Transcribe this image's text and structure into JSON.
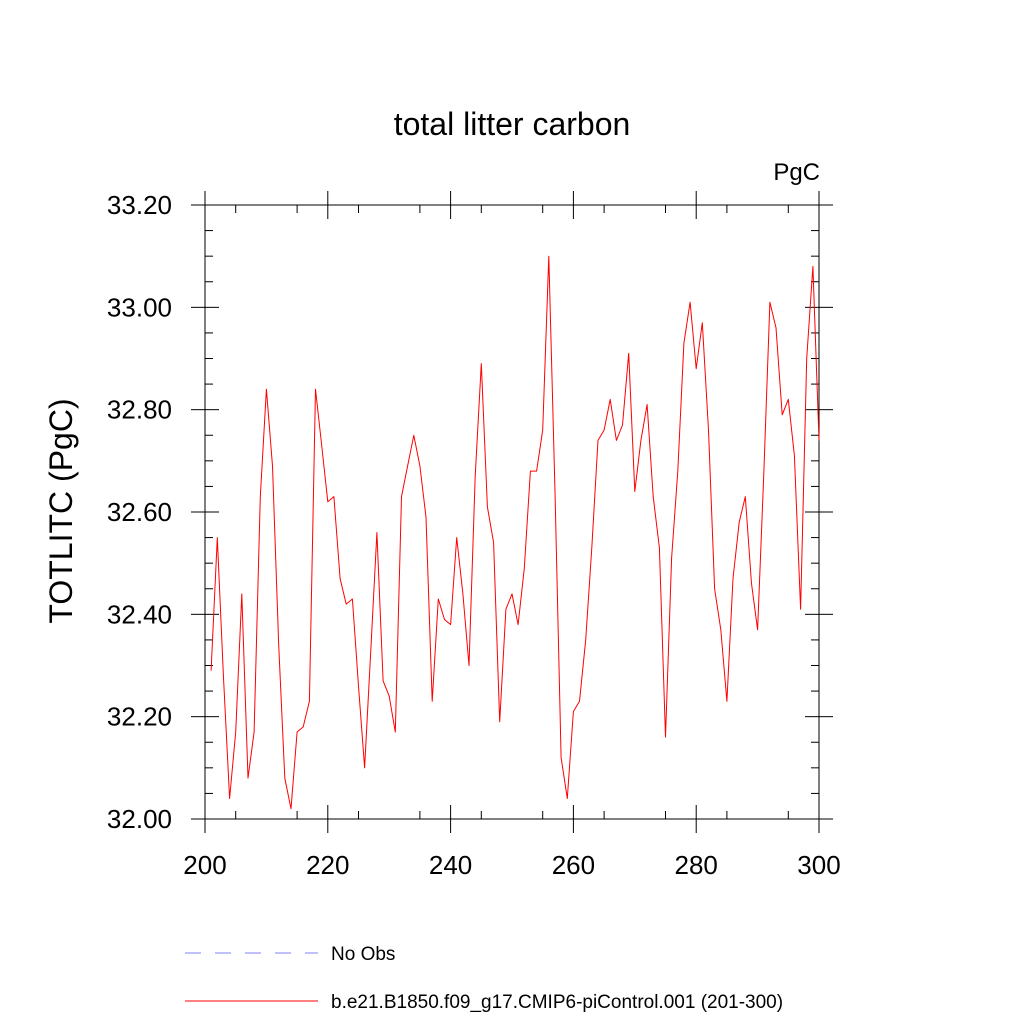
{
  "chart_data": {
    "type": "line",
    "title": "total litter carbon",
    "units": "PgC",
    "xlabel": "",
    "ylabel": "TOTLITC  (PgC)",
    "xlim": [
      200,
      300
    ],
    "ylim": [
      32.0,
      33.2
    ],
    "x_ticks": [
      "200",
      "220",
      "240",
      "260",
      "280",
      "300"
    ],
    "y_ticks": [
      "32.00",
      "32.20",
      "32.40",
      "32.60",
      "32.80",
      "33.00",
      "33.20"
    ],
    "grid": false,
    "legend_position": "bottom",
    "legend": [
      {
        "label": "No Obs",
        "color": "#8080ff",
        "style": "dashed"
      },
      {
        "label": "b.e21.B1850.f09_g17.CMIP6-piControl.001 (201-300)",
        "color": "#ff0000",
        "style": "solid"
      }
    ],
    "series": [
      {
        "name": "b.e21.B1850.f09_g17.CMIP6-piControl.001 (201-300)",
        "color": "#ff0000",
        "x": [
          201,
          202,
          203,
          204,
          205,
          206,
          207,
          208,
          209,
          210,
          211,
          212,
          213,
          214,
          215,
          216,
          217,
          218,
          219,
          220,
          221,
          222,
          223,
          224,
          225,
          226,
          227,
          228,
          229,
          230,
          231,
          232,
          233,
          234,
          235,
          236,
          237,
          238,
          239,
          240,
          241,
          242,
          243,
          244,
          245,
          246,
          247,
          248,
          249,
          250,
          251,
          252,
          253,
          254,
          255,
          256,
          257,
          258,
          259,
          260,
          261,
          262,
          263,
          264,
          265,
          266,
          267,
          268,
          269,
          270,
          271,
          272,
          273,
          274,
          275,
          276,
          277,
          278,
          279,
          280,
          281,
          282,
          283,
          284,
          285,
          286,
          287,
          288,
          289,
          290,
          291,
          292,
          293,
          294,
          295,
          296,
          297,
          298,
          299,
          300
        ],
        "values": [
          32.29,
          32.55,
          32.28,
          32.04,
          32.17,
          32.44,
          32.08,
          32.17,
          32.63,
          32.84,
          32.69,
          32.34,
          32.08,
          32.02,
          32.17,
          32.18,
          32.23,
          32.84,
          32.73,
          32.62,
          32.63,
          32.47,
          32.42,
          32.43,
          32.26,
          32.1,
          32.33,
          32.56,
          32.27,
          32.24,
          32.17,
          32.63,
          32.69,
          32.75,
          32.69,
          32.59,
          32.23,
          32.43,
          32.39,
          32.38,
          32.55,
          32.44,
          32.3,
          32.67,
          32.89,
          32.61,
          32.54,
          32.19,
          32.41,
          32.44,
          32.38,
          32.49,
          32.68,
          32.68,
          32.76,
          33.1,
          32.64,
          32.12,
          32.04,
          32.21,
          32.23,
          32.35,
          32.53,
          32.74,
          32.76,
          32.82,
          32.74,
          32.77,
          32.91,
          32.64,
          32.74,
          32.81,
          32.63,
          32.53,
          32.16,
          32.51,
          32.68,
          32.93,
          33.01,
          32.88,
          32.97,
          32.76,
          32.45,
          32.37,
          32.23,
          32.47,
          32.58,
          32.63,
          32.46,
          32.37,
          32.67,
          33.01,
          32.96,
          32.79,
          32.82,
          32.71,
          32.41,
          32.9,
          33.08,
          32.74
        ]
      }
    ]
  }
}
